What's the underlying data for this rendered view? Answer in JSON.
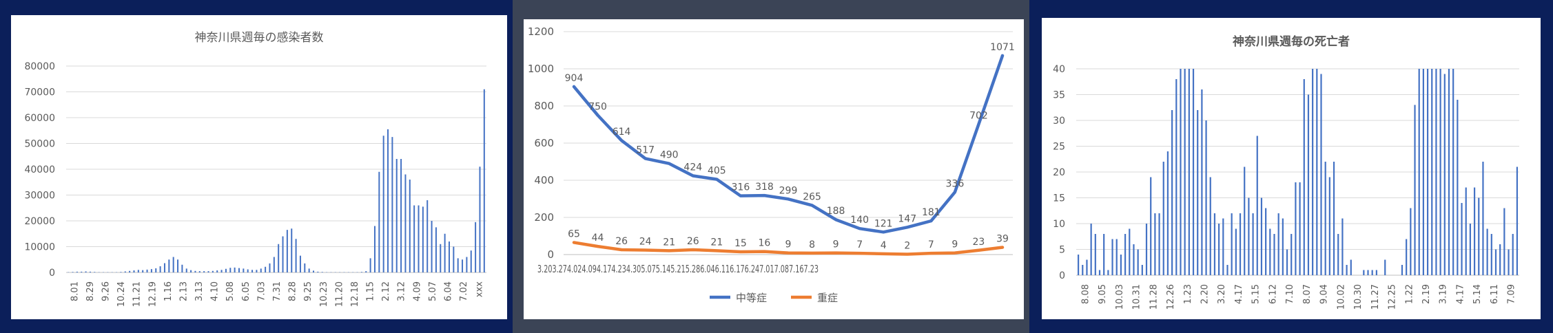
{
  "colors": {
    "background_left": "#0b1f5a",
    "background_middle": "#3b4456",
    "background_right": "#0b1f5a",
    "panel": "#ffffff",
    "bar": "#4472c4",
    "series_moderate": "#4472c4",
    "series_severe": "#ed7d31",
    "grid": "#d9d9d9",
    "text": "#595959"
  },
  "chart_data": [
    {
      "type": "bar",
      "title": "神奈川県週毎の感染者数",
      "xlabel": "",
      "ylabel": "",
      "ylim": [
        0,
        80000
      ],
      "yticks": [
        "0",
        "10000",
        "20000",
        "30000",
        "40000",
        "50000",
        "60000",
        "70000",
        "80000"
      ],
      "grid": true,
      "tick_labels": [
        "8.01",
        "8.29",
        "9.26",
        "10.24",
        "11.21",
        "12.19",
        "1.16",
        "2.13",
        "3.13",
        "4.10",
        "5.08",
        "6.05",
        "7.03",
        "7.31",
        "8.28",
        "9.25",
        "10.23",
        "11.20",
        "12.18",
        "1.15",
        "2.12",
        "3.12",
        "4.09",
        "5.07",
        "6.04",
        "7.02",
        "xxx"
      ],
      "values": [
        100,
        200,
        300,
        300,
        400,
        300,
        200,
        100,
        100,
        100,
        100,
        100,
        200,
        400,
        600,
        800,
        1000,
        900,
        1100,
        1300,
        1600,
        2400,
        3600,
        5000,
        6000,
        5000,
        3000,
        1500,
        900,
        600,
        500,
        500,
        500,
        600,
        800,
        1000,
        1400,
        1800,
        1900,
        1700,
        1500,
        1200,
        1000,
        1000,
        1500,
        2200,
        3500,
        6000,
        11000,
        14000,
        16500,
        17000,
        13000,
        6500,
        3500,
        1500,
        700,
        300,
        200,
        100,
        100,
        100,
        100,
        100,
        100,
        100,
        100,
        200,
        500,
        5500,
        18000,
        39000,
        53000,
        55500,
        52500,
        44000,
        44000,
        38000,
        36000,
        26000,
        26000,
        25500,
        28000,
        20000,
        17500,
        11000,
        15000,
        12000,
        10000,
        5500,
        5000,
        6000,
        8500,
        19500,
        41000,
        71000
      ]
    },
    {
      "type": "line",
      "title": "",
      "xlabel": "",
      "ylabel": "",
      "ylim": [
        0,
        1200
      ],
      "yticks": [
        "0",
        "200",
        "400",
        "600",
        "800",
        "1000",
        "1200"
      ],
      "grid": true,
      "legend_position": "bottom",
      "categories": [
        "3.20",
        "3.27",
        "4.02",
        "4.09",
        "4.17",
        "4.23",
        "4.30",
        "5.07",
        "5.14",
        "5.21",
        "5.28",
        "6.04",
        "6.11",
        "6.17",
        "6.24",
        "7.01",
        "7.08",
        "7.16",
        "7.23"
      ],
      "category_axis_text": "3.203.274.024.094.174.234.305.075.145.215.286.046.116.176.247.017.087.167.23",
      "series": [
        {
          "name": "中等症",
          "values": [
            904,
            750,
            614,
            517,
            490,
            424,
            405,
            316,
            318,
            299,
            265,
            188,
            140,
            121,
            147,
            181,
            336,
            702,
            1071
          ]
        },
        {
          "name": "重症",
          "values": [
            65,
            44,
            26,
            24,
            21,
            26,
            21,
            15,
            16,
            9,
            8,
            9,
            7,
            4,
            2,
            7,
            9,
            23,
            39
          ]
        }
      ]
    },
    {
      "type": "bar",
      "title": "神奈川県週毎の死亡者",
      "xlabel": "",
      "ylabel": "",
      "ylim": [
        0,
        40
      ],
      "yticks": [
        "0",
        "5",
        "10",
        "15",
        "20",
        "25",
        "30",
        "35",
        "40"
      ],
      "grid": true,
      "tick_labels": [
        "8.08",
        "9.05",
        "10.03",
        "10.31",
        "11.28",
        "12.26",
        "1.23",
        "2.20",
        "3.20",
        "4.17",
        "5.15",
        "6.12",
        "7.10",
        "8.07",
        "9.04",
        "10.02",
        "10.30",
        "11.27",
        "12.25",
        "1.22",
        "2.19",
        "3.19",
        "4.17",
        "5.14",
        "6.11",
        "7.09"
      ],
      "values": [
        4,
        2,
        3,
        10,
        8,
        1,
        8,
        1,
        7,
        7,
        4,
        8,
        9,
        6,
        5,
        2,
        10,
        19,
        12,
        12,
        22,
        24,
        32,
        38,
        40,
        40,
        40,
        40,
        32,
        36,
        30,
        19,
        12,
        10,
        11,
        2,
        12,
        9,
        12,
        21,
        15,
        12,
        27,
        15,
        13,
        9,
        8,
        12,
        11,
        5,
        8,
        18,
        18,
        38,
        35,
        40,
        40,
        39,
        22,
        19,
        22,
        8,
        11,
        2,
        3,
        0,
        0,
        1,
        1,
        1,
        1,
        0,
        3,
        0,
        0,
        0,
        2,
        7,
        13,
        33,
        40,
        40,
        40,
        40,
        40,
        40,
        39,
        40,
        40,
        34,
        14,
        17,
        10,
        17,
        15,
        22,
        9,
        8,
        5,
        6,
        13,
        5,
        8,
        21
      ]
    }
  ]
}
